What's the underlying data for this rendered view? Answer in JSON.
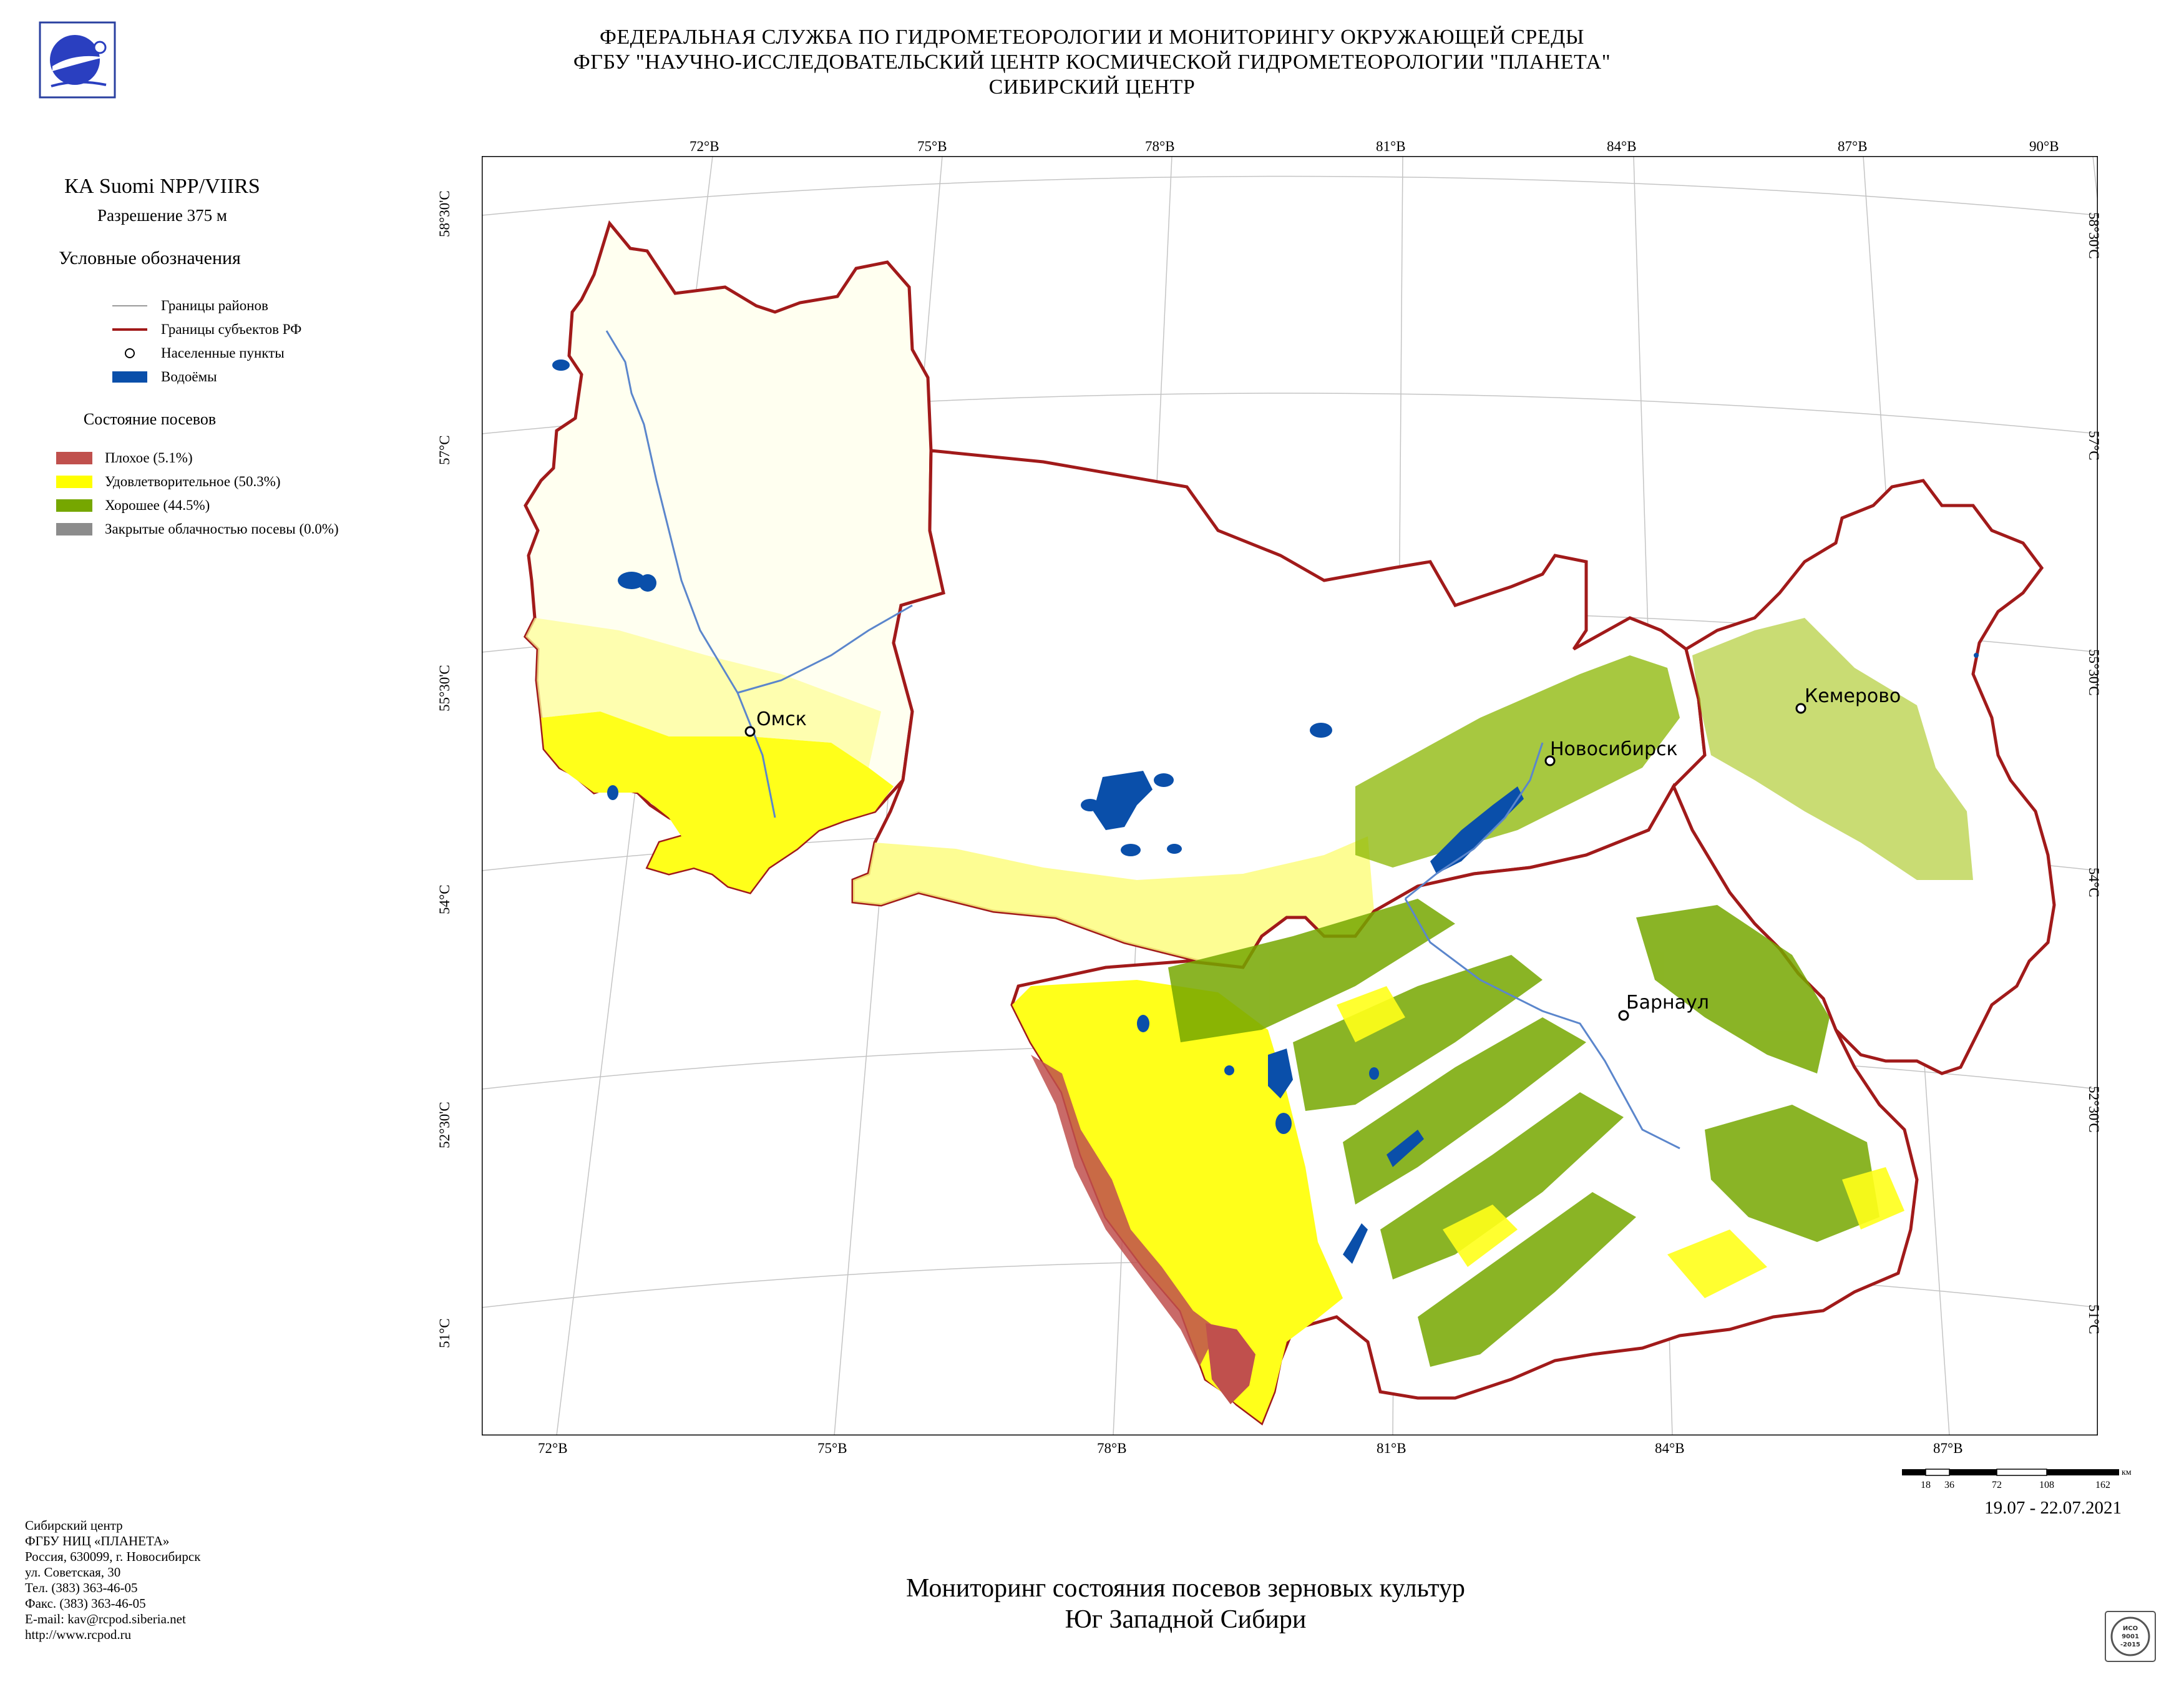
{
  "header": {
    "line1": "ФЕДЕРАЛЬНАЯ СЛУЖБА ПО ГИДРОМЕТЕОРОЛОГИИ И МОНИТОРИНГУ ОКРУЖАЮЩЕЙ СРЕДЫ",
    "line2": "ФГБУ \"НАУЧНО-ИССЛЕДОВАТЕЛЬСКИЙ ЦЕНТР КОСМИЧЕСКОЙ ГИДРОМЕТЕОРОЛОГИИ \"ПЛАНЕТА\"",
    "line3": "СИБИРСКИЙ ЦЕНТР"
  },
  "satellite": "КА Suomi NPP/VIIRS",
  "resolution": "Разрешение 375 м",
  "legend": {
    "title": "Условные обозначения",
    "items": [
      {
        "label": "Границы районов",
        "color": "#9a9a9a",
        "symbol": "thin-line-icon"
      },
      {
        "label": "Границы субъектов РФ",
        "color": "#a11a1a",
        "symbol": "thick-line-icon"
      },
      {
        "label": "Населенные пункты",
        "color": "#000000",
        "symbol": "circle-icon"
      },
      {
        "label": "Водоёмы",
        "color": "#0a4faa",
        "symbol": "square-icon"
      }
    ],
    "crop_title": "Состояние посевов",
    "crop_items": [
      {
        "label": "Плохое (5.1%)",
        "color": "#c0504d"
      },
      {
        "label": "Удовлетворительное (50.3%)",
        "color": "#ffff00"
      },
      {
        "label": "Хорошее (44.5%)",
        "color": "#76a700"
      },
      {
        "label": "Закрытые облачностью посевы (0.0%)",
        "color": "#8c8c8c"
      }
    ]
  },
  "map": {
    "top_lon_labels": [
      "72°В",
      "75°В",
      "78°В",
      "81°В",
      "84°В",
      "87°В",
      "90°В"
    ],
    "bottom_lon_labels": [
      "72°В",
      "75°В",
      "78°В",
      "81°В",
      "84°В",
      "87°В"
    ],
    "lat_labels": [
      "58°30'С",
      "57°С",
      "55°30'С",
      "54°С",
      "52°30'С",
      "51°С"
    ],
    "cities": [
      "Омск",
      "Новосибирск",
      "Кемерово",
      "Барнаул"
    ]
  },
  "scale": {
    "ticks": [
      "18",
      "36",
      "72",
      "108",
      "162"
    ],
    "unit": "км"
  },
  "date": "19.07 - 22.07.2021",
  "contacts": [
    "Сибирский центр",
    "ФГБУ НИЦ «ПЛАНЕТА»",
    "Россия, 630099, г. Новосибирск",
    "ул. Советская, 30",
    "Тел. (383) 363-46-05",
    "Факс. (383) 363-46-05",
    "E-mail: kav@rcpod.siberia.net",
    "http://www.rcpod.ru"
  ],
  "bottom_title": {
    "line1": "Мониторинг состояния посевов зерновых культур",
    "line2": "Юг Западной Сибири"
  },
  "certificate": {
    "line1": "ИСО",
    "line2": "9001",
    "line3": "-2015"
  }
}
